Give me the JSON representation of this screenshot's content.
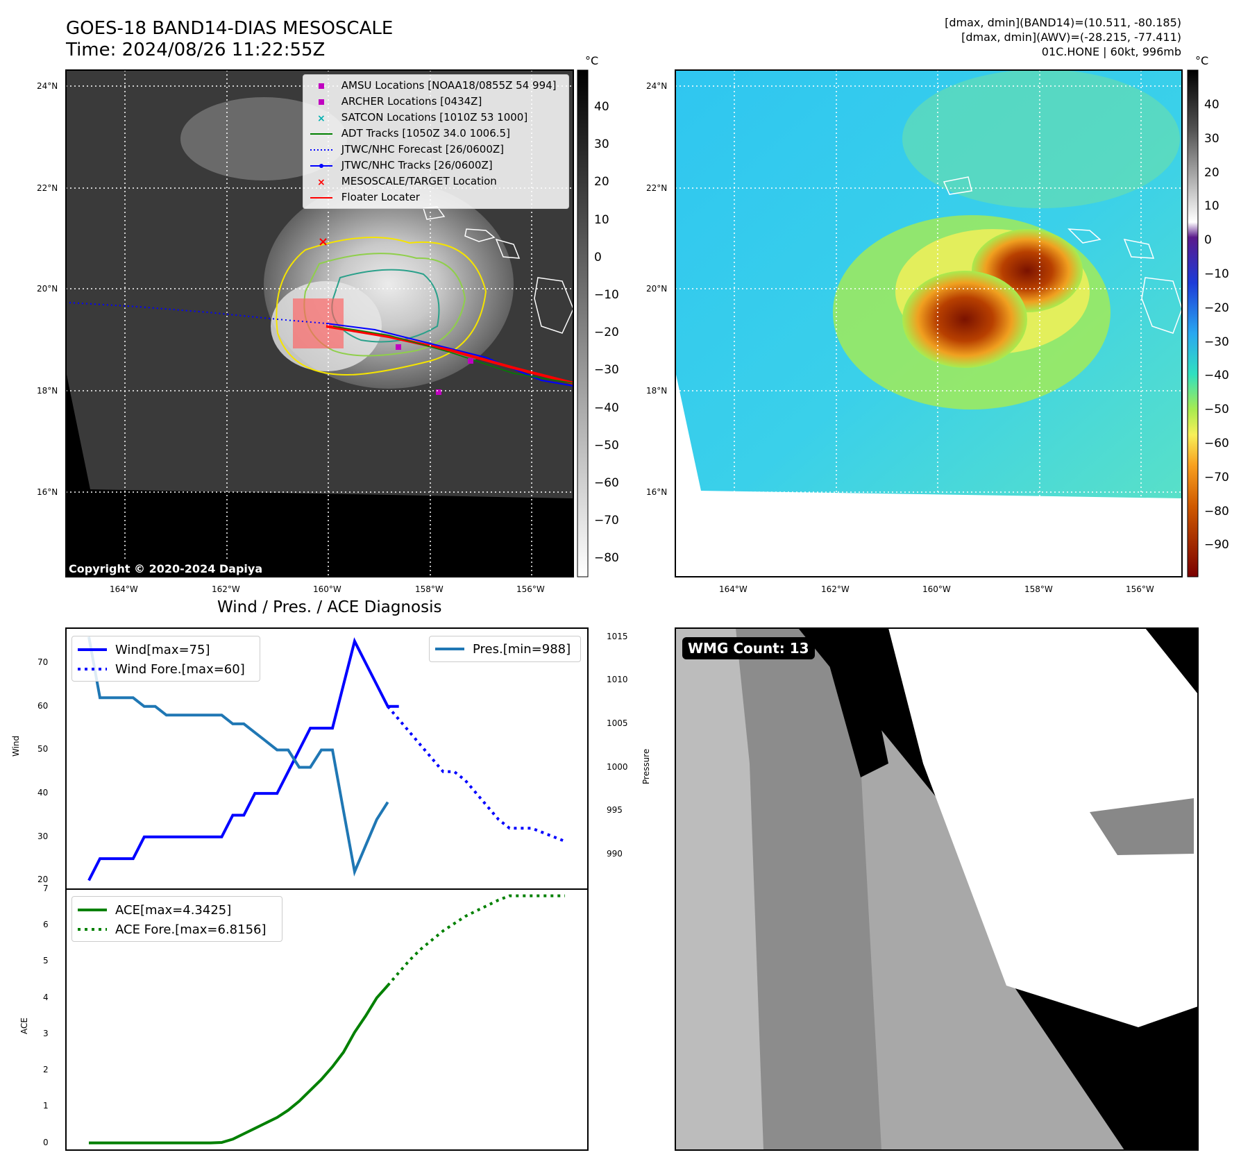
{
  "header": {
    "title_line1": "GOES-18 BAND14-DIAS MESOSCALE",
    "title_line2": "Time: 2024/08/26 11:22:55Z",
    "info_line1": "[dmax, dmin](BAND14)=(10.511, -80.185)",
    "info_line2": "[dmax, dmin](AWV)=(-28.215, -77.411)",
    "info_line3": "01C.HONE | 60kt, 996mb"
  },
  "map": {
    "lat_ticks": [
      "24°N",
      "22°N",
      "20°N",
      "18°N",
      "16°N"
    ],
    "lon_ticks": [
      "164°W",
      "162°W",
      "160°W",
      "158°W",
      "156°W"
    ],
    "copyright": "Copyright © 2020-2024 Dapiya",
    "legend": [
      {
        "label": "AMSU Locations [NOAA18/0855Z 54 994]",
        "marker": "square",
        "color": "#c000c0"
      },
      {
        "label": "ARCHER Locations [0434Z]",
        "marker": "square",
        "color": "#c000c0"
      },
      {
        "label": "SATCON Locations [1010Z 53 1000]",
        "marker": "x",
        "color": "#00b0b0"
      },
      {
        "label": "ADT Tracks [1050Z 34.0 1006.5]",
        "marker": "line",
        "color": "#008000"
      },
      {
        "label": "JTWC/NHC Forecast [26/0600Z]",
        "marker": "dotted",
        "color": "#0000ff"
      },
      {
        "label": "JTWC/NHC Tracks [26/0600Z]",
        "marker": "line-dot",
        "color": "#0000ff"
      },
      {
        "label": "MESOSCALE/TARGET Location",
        "marker": "x",
        "color": "#ff0000"
      },
      {
        "label": "Floater Locater",
        "marker": "line",
        "color": "#ff0000"
      }
    ],
    "left_cbar": {
      "unit": "°C",
      "ticks": [
        "40",
        "30",
        "20",
        "10",
        "0",
        "−10",
        "−20",
        "−30",
        "−40",
        "−50",
        "−60",
        "−70",
        "−80"
      ]
    },
    "right_cbar": {
      "unit": "°C",
      "ticks": [
        "40",
        "30",
        "20",
        "10",
        "0",
        "−10",
        "−20",
        "−30",
        "−40",
        "−50",
        "−60",
        "−70",
        "−80",
        "−90"
      ]
    }
  },
  "diagnosis": {
    "title": "Wind / Pres. / ACE Diagnosis",
    "wmg_count": "WMG Count: 13"
  },
  "chart_data": [
    {
      "type": "line",
      "title": "Wind / Pres. / ACE Diagnosis",
      "ylabel": "Wind",
      "ylim": [
        18,
        78
      ],
      "y2label": "Pressure",
      "y2lim": [
        986,
        1016
      ],
      "yticks": [
        "70",
        "60",
        "50",
        "40",
        "30",
        "20"
      ],
      "y2ticks": [
        "1015",
        "1010",
        "1005",
        "1000",
        "995",
        "990"
      ],
      "series": [
        {
          "name": "Wind[max=75]",
          "axis": "left",
          "style": "solid",
          "color": "#0000ff",
          "x": [
            0,
            1,
            2,
            3,
            4,
            5,
            6,
            7,
            8,
            9,
            10,
            11,
            12,
            13,
            14,
            15,
            16,
            17,
            18,
            19,
            20,
            21,
            22,
            23,
            24,
            25,
            26,
            27,
            28
          ],
          "values": [
            20,
            25,
            25,
            25,
            25,
            30,
            30,
            30,
            30,
            30,
            30,
            30,
            30,
            35,
            35,
            40,
            40,
            40,
            45,
            50,
            55,
            55,
            55,
            65,
            75,
            70,
            65,
            60,
            60
          ]
        },
        {
          "name": "Wind Fore.[max=60]",
          "axis": "left",
          "style": "dotted",
          "color": "#0000ff",
          "x": [
            27,
            28,
            29,
            30,
            31,
            32,
            33,
            34,
            35,
            36,
            37,
            38,
            39,
            40,
            41,
            42,
            43
          ],
          "values": [
            60,
            57,
            54,
            51,
            48,
            45,
            45,
            43,
            40,
            37,
            34,
            32,
            32,
            32,
            31,
            30,
            29
          ]
        },
        {
          "name": "Pres.[min=988]",
          "axis": "right",
          "style": "solid",
          "color": "#1f77b4",
          "x": [
            0,
            1,
            2,
            3,
            4,
            5,
            6,
            7,
            8,
            9,
            10,
            11,
            12,
            13,
            14,
            15,
            16,
            17,
            18,
            19,
            20,
            21,
            22,
            23,
            24,
            25,
            26,
            27
          ],
          "values": [
            1015,
            1008,
            1008,
            1008,
            1008,
            1007,
            1007,
            1006,
            1006,
            1006,
            1006,
            1006,
            1006,
            1005,
            1005,
            1004,
            1003,
            1002,
            1002,
            1000,
            1000,
            1002,
            1002,
            995,
            988,
            991,
            994,
            996
          ]
        }
      ]
    },
    {
      "type": "line",
      "ylabel": "ACE",
      "ylim": [
        -0.2,
        7
      ],
      "yticks": [
        "7",
        "6",
        "5",
        "4",
        "3",
        "2",
        "1",
        "0"
      ],
      "series": [
        {
          "name": "ACE[max=4.3425]",
          "style": "solid",
          "color": "#008000",
          "x": [
            0,
            1,
            2,
            3,
            4,
            5,
            6,
            7,
            8,
            9,
            10,
            11,
            12,
            13,
            14,
            15,
            16,
            17,
            18,
            19,
            20,
            21,
            22,
            23,
            24,
            25,
            26,
            27
          ],
          "values": [
            0,
            0,
            0,
            0,
            0,
            0,
            0,
            0,
            0,
            0,
            0,
            0,
            0.01,
            0.1,
            0.25,
            0.4,
            0.55,
            0.7,
            0.9,
            1.15,
            1.45,
            1.75,
            2.1,
            2.5,
            3.05,
            3.5,
            4.0,
            4.3425
          ]
        },
        {
          "name": "ACE Fore.[max=6.8156]",
          "style": "dotted",
          "color": "#008000",
          "x": [
            27,
            28,
            29,
            30,
            31,
            32,
            33,
            34,
            35,
            36,
            37,
            38,
            39,
            40,
            41,
            42,
            43
          ],
          "values": [
            4.3425,
            4.7,
            5.05,
            5.35,
            5.6,
            5.85,
            6.05,
            6.25,
            6.4,
            6.55,
            6.7,
            6.8156,
            6.8156,
            6.8156,
            6.8156,
            6.8156,
            6.8156
          ]
        }
      ]
    }
  ]
}
